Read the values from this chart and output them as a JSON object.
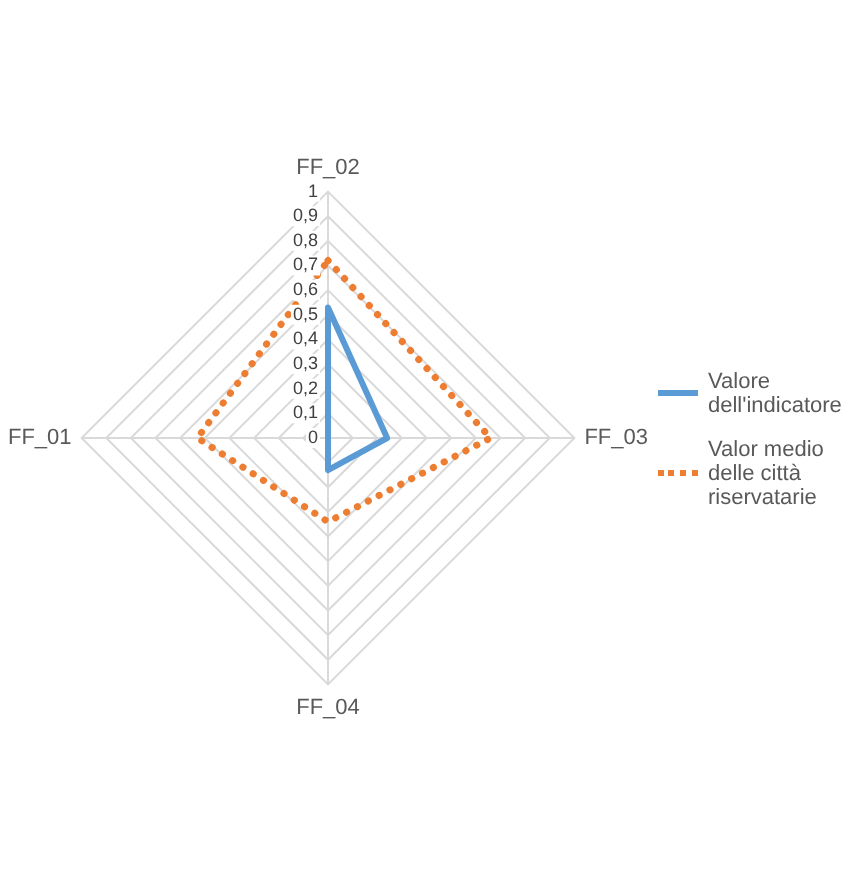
{
  "chart_data": {
    "type": "radar",
    "categories": [
      "FF_02",
      "FF_03",
      "FF_04",
      "FF_01"
    ],
    "series": [
      {
        "name": "Valore dell'indicatore",
        "color": "#5b9bd5",
        "values": [
          0.53,
          0.24,
          0.13,
          0
        ],
        "line_style": "solid"
      },
      {
        "name": "Valor medio delle città riservatarie",
        "color": "#ed7d31",
        "values": [
          0.72,
          0.66,
          0.34,
          0.53
        ],
        "line_style": "dotted"
      }
    ],
    "ylim": [
      0,
      1
    ],
    "yticks": [
      0,
      {
        "value": 0.1,
        "label": "0,1"
      },
      {
        "value": 0.2,
        "label": "0,2"
      },
      {
        "value": 0.3,
        "label": "0,3"
      },
      {
        "value": 0.4,
        "label": "0,4"
      },
      {
        "value": 0.5,
        "label": "0,5"
      },
      {
        "value": 0.6,
        "label": "0,6"
      },
      {
        "value": 0.7,
        "label": "0,7"
      },
      {
        "value": 0.8,
        "label": "0,8"
      },
      {
        "value": 0.9,
        "label": "0,9"
      },
      1
    ],
    "grid": true,
    "legend": "right",
    "marker": "none"
  }
}
